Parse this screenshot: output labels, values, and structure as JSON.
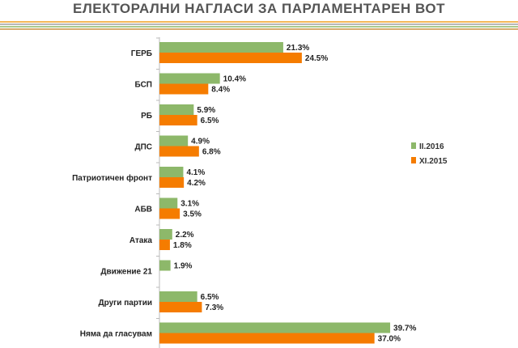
{
  "chart_data": {
    "type": "bar",
    "orientation": "horizontal",
    "title": "ЕЛЕКТОРАЛНИ НАГЛАСИ ЗА ПАРЛАМЕНТАРЕН ВОТ",
    "categories": [
      "ГЕРБ",
      "БСП",
      "РБ",
      "ДПС",
      "Патриотичен фронт",
      "АБВ",
      "Атака",
      "Движение 21",
      "Други партии",
      "Няма да гласувам"
    ],
    "series": [
      {
        "name": "II.2016",
        "color": "#8db86a",
        "values": [
          21.3,
          10.4,
          5.9,
          4.9,
          4.1,
          3.1,
          2.2,
          1.9,
          6.5,
          39.7
        ],
        "labels": [
          "21.3%",
          "10.4%",
          "5.9%",
          "4.9%",
          "4.1%",
          "3.1%",
          "2.2%",
          "1.9%",
          "6.5%",
          "39.7%"
        ]
      },
      {
        "name": "XI.2015",
        "color": "#f57c00",
        "values": [
          24.5,
          8.4,
          6.5,
          6.8,
          4.2,
          3.5,
          1.8,
          null,
          7.3,
          37.0
        ],
        "labels": [
          "24.5%",
          "8.4%",
          "6.5%",
          "6.8%",
          "4.2%",
          "3.5%",
          "1.8%",
          "",
          "7.3%",
          "37.0%"
        ]
      }
    ],
    "xlim": [
      0,
      45
    ],
    "grid": false,
    "legend_position": "right",
    "decoration_colors": [
      "#f0a020",
      "#a0a0a0",
      "#8db86a",
      "#c89040"
    ]
  }
}
